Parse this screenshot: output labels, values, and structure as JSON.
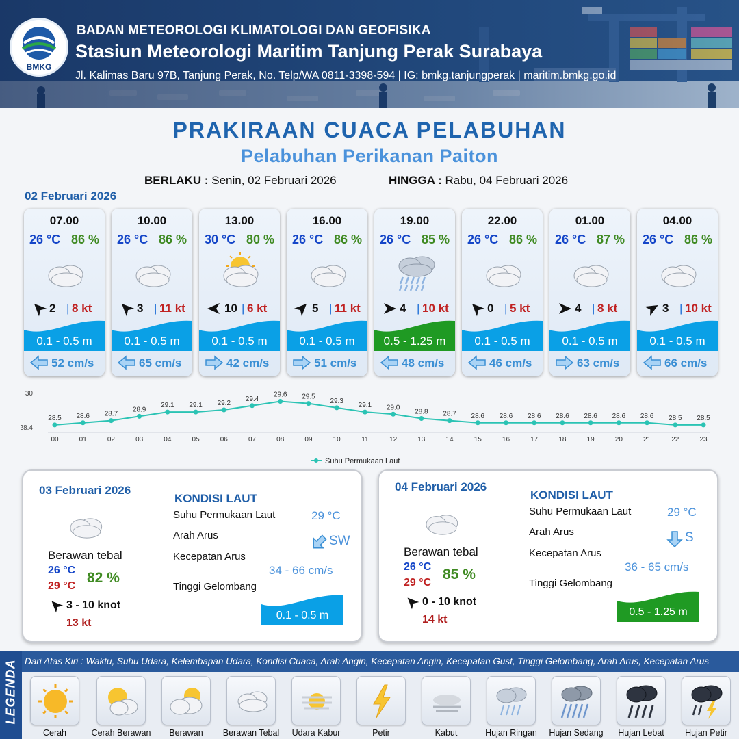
{
  "header": {
    "logo_text": "BMKG",
    "organization": "BADAN METEOROLOGI KLIMATOLOGI DAN GEOFISIKA",
    "station": "Stasiun Meteorologi Maritim Tanjung Perak Surabaya",
    "address": "Jl. Kalimas Baru 97B, Tanjung Perak, No. Telp/WA 0811-3398-594 | IG: bmkg.tanjungperak | maritim.bmkg.go.id"
  },
  "title": "PRAKIRAAN CUACA PELABUHAN",
  "subtitle": "Pelabuhan Perikanan Paiton",
  "validity": {
    "from_label": "BERLAKU :",
    "from_value": "Senin, 02 Februari 2026",
    "to_label": "HINGGA :",
    "to_value": "Rabu, 04 Februari 2026"
  },
  "hourly_date": "02 Februari 2026",
  "hourly": [
    {
      "time": "07.00",
      "temp": "26 °C",
      "humidity": "86 %",
      "weather": "cloudy-thick",
      "wind_dir_deg": 315,
      "wind": "2",
      "gust": "8 kt",
      "wave": "0.1 - 0.5 m",
      "wave_level": "low",
      "current_dir": "left",
      "current": "52 cm/s"
    },
    {
      "time": "10.00",
      "temp": "26 °C",
      "humidity": "86 %",
      "weather": "cloudy-thick",
      "wind_dir_deg": 315,
      "wind": "3",
      "gust": "11 kt",
      "wave": "0.1 - 0.5 m",
      "wave_level": "low",
      "current_dir": "left",
      "current": "65 cm/s"
    },
    {
      "time": "13.00",
      "temp": "30 °C",
      "humidity": "80 %",
      "weather": "partly-cloudy",
      "wind_dir_deg": 270,
      "wind": "10",
      "gust": "6 kt",
      "wave": "0.1 - 0.5 m",
      "wave_level": "low",
      "current_dir": "right",
      "current": "42 cm/s"
    },
    {
      "time": "16.00",
      "temp": "26 °C",
      "humidity": "86 %",
      "weather": "cloudy-thick",
      "wind_dir_deg": 45,
      "wind": "5",
      "gust": "11 kt",
      "wave": "0.1 - 0.5 m",
      "wave_level": "low",
      "current_dir": "right",
      "current": "51 cm/s"
    },
    {
      "time": "19.00",
      "temp": "26 °C",
      "humidity": "85 %",
      "weather": "light-rain",
      "wind_dir_deg": 90,
      "wind": "4",
      "gust": "10 kt",
      "wave": "0.5 - 1.25 m",
      "wave_level": "moderate",
      "current_dir": "left",
      "current": "48 cm/s"
    },
    {
      "time": "22.00",
      "temp": "26 °C",
      "humidity": "86 %",
      "weather": "cloudy-thick",
      "wind_dir_deg": 315,
      "wind": "0",
      "gust": "5 kt",
      "wave": "0.1 - 0.5 m",
      "wave_level": "low",
      "current_dir": "left",
      "current": "46 cm/s"
    },
    {
      "time": "01.00",
      "temp": "26 °C",
      "humidity": "87 %",
      "weather": "cloudy-thick",
      "wind_dir_deg": 90,
      "wind": "4",
      "gust": "8 kt",
      "wave": "0.1 - 0.5 m",
      "wave_level": "low",
      "current_dir": "right",
      "current": "63 cm/s"
    },
    {
      "time": "04.00",
      "temp": "26 °C",
      "humidity": "86 %",
      "weather": "cloudy-thick",
      "wind_dir_deg": 60,
      "wind": "3",
      "gust": "10 kt",
      "wave": "0.1 - 0.5 m",
      "wave_level": "low",
      "current_dir": "left",
      "current": "66 cm/s"
    }
  ],
  "chart_data": {
    "type": "line",
    "title": "",
    "xlabel": "",
    "ylabel": "",
    "x": [
      "00",
      "01",
      "02",
      "03",
      "04",
      "05",
      "06",
      "07",
      "08",
      "09",
      "10",
      "11",
      "12",
      "13",
      "14",
      "15",
      "16",
      "17",
      "18",
      "19",
      "20",
      "21",
      "22",
      "23"
    ],
    "series": [
      {
        "name": "Suhu Permukaan Laut",
        "values": [
          28.5,
          28.6,
          28.7,
          28.9,
          29.1,
          29.1,
          29.2,
          29.4,
          29.6,
          29.5,
          29.3,
          29.1,
          29.0,
          28.8,
          28.7,
          28.6,
          28.6,
          28.6,
          28.6,
          28.6,
          28.6,
          28.6,
          28.5,
          28.5
        ]
      }
    ],
    "y_ticks": [
      "30",
      "28.4"
    ],
    "ylim": [
      28.4,
      30
    ],
    "legend": "bottom",
    "grid": false,
    "color": "#2bc3b4"
  },
  "days": [
    {
      "date": "03 Februari 2026",
      "condition": "Berawan tebal",
      "temp_min": "26 °C",
      "temp_max": "29 °C",
      "humidity": "82 %",
      "wind_dir_deg": 315,
      "wind": "3  - 10 knot",
      "gust": "13 kt",
      "sea_title": "KONDISI LAUT",
      "sst_label": "Suhu Permukaan Laut",
      "sst": "29 °C",
      "current_dir_label": "Arah Arus",
      "current_dir": "SW",
      "current_speed_label": "Kecepatan Arus",
      "current_speed": "34  - 66 cm/s",
      "wave_label": "Tinggi Gelombang",
      "wave": "0.1 - 0.5 m",
      "wave_level": "low"
    },
    {
      "date": "04 Februari 2026",
      "condition": "Berawan tebal",
      "temp_min": "26 °C",
      "temp_max": "29 °C",
      "humidity": "85 %",
      "wind_dir_deg": 315,
      "wind": "0  - 10 knot",
      "gust": "14 kt",
      "sea_title": "KONDISI LAUT",
      "sst_label": "Suhu Permukaan Laut",
      "sst": "29 °C",
      "current_dir_label": "Arah Arus",
      "current_dir": "S",
      "current_speed_label": "Kecepatan Arus",
      "current_speed": "36  - 65 cm/s",
      "wave_label": "Tinggi Gelombang",
      "wave": "0.5 - 1.25 m",
      "wave_level": "moderate"
    }
  ],
  "colors": {
    "wave_low": "#0aa0e6",
    "wave_moderate": "#1f9a23",
    "temp_blue": "#1546c8",
    "humidity_green": "#3f8a22",
    "gust_red": "#c02222"
  },
  "legend": {
    "side_label": "LEGENDA",
    "description": "Dari Atas Kiri : Waktu, Suhu Udara, Kelembapan Udara, Kondisi Cuaca, Arah Angin, Kecepatan Angin, Kecepatan Gust, Tinggi Gelombang, Arah Arus, Kecepatan Arus",
    "items": [
      {
        "label": "Cerah",
        "icon": "sun-icon"
      },
      {
        "label": "Cerah Berawan",
        "icon": "sun-cloud-icon"
      },
      {
        "label": "Berawan",
        "icon": "cloud-sun-icon"
      },
      {
        "label": "Berawan Tebal",
        "icon": "thick-cloud-icon"
      },
      {
        "label": "Udara Kabur",
        "icon": "haze-icon"
      },
      {
        "label": "Petir",
        "icon": "lightning-icon"
      },
      {
        "label": "Kabut",
        "icon": "fog-icon"
      },
      {
        "label": "Hujan Ringan",
        "icon": "light-rain-icon"
      },
      {
        "label": "Hujan Sedang",
        "icon": "moderate-rain-icon"
      },
      {
        "label": "Hujan Lebat",
        "icon": "heavy-rain-icon"
      },
      {
        "label": "Hujan Petir",
        "icon": "thunderstorm-icon"
      }
    ]
  }
}
